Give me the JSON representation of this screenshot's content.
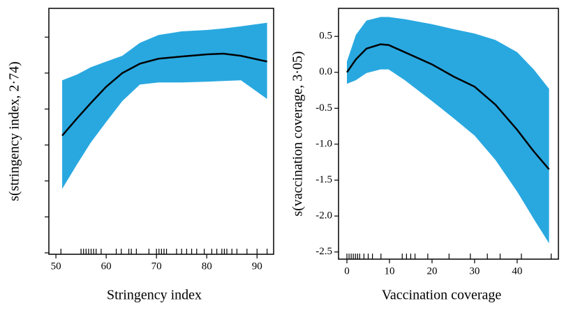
{
  "chart_data": [
    {
      "type": "line",
      "x_label": "Stringency index",
      "y_label": "s(stringency index, 2·74)",
      "x": [
        51.25,
        54.2,
        56.9,
        60,
        63.2,
        66.7,
        70.4,
        75,
        80.1,
        83.3,
        86.8,
        92
      ],
      "values": [
        -0.87,
        -0.63,
        -0.42,
        -0.19,
        0,
        0.13,
        0.2,
        0.23,
        0.26,
        0.27,
        0.24,
        0.16
      ],
      "band_upper": [
        -0.1,
        -0.02,
        0.08,
        0.16,
        0.24,
        0.42,
        0.53,
        0.58,
        0.6,
        0.62,
        0.65,
        0.7
      ],
      "band_lower": [
        -1.61,
        -1.27,
        -0.97,
        -0.68,
        -0.39,
        -0.16,
        -0.13,
        -0.13,
        -0.12,
        -0.11,
        -0.1,
        -0.36
      ],
      "rug": [
        51,
        55,
        55.5,
        56,
        56.5,
        57,
        57.5,
        58,
        59,
        62,
        63,
        64.5,
        65,
        66,
        68.5,
        70,
        70.5,
        71,
        71.5,
        72,
        74,
        75,
        76,
        77,
        78,
        79.5,
        81,
        82,
        83,
        83.5,
        84,
        85,
        86,
        88,
        90,
        92
      ],
      "color": "#000000",
      "band_color": "#29a8e0",
      "xlim": [
        48.6,
        93.3
      ],
      "xticks": [
        50,
        60,
        70,
        80,
        90
      ],
      "ylim": [
        -2.52,
        0.9
      ],
      "yticks": [
        0.5,
        0,
        -0.5,
        -1,
        -1.5,
        -2,
        -2.5
      ],
      "ytick_labels": false
    },
    {
      "type": "line",
      "x_label": "Vaccination coverage",
      "y_label": "s(vaccination coverage, 3·05)",
      "x": [
        0,
        2.1,
        4.6,
        7.9,
        9.8,
        13.6,
        20,
        25.1,
        30,
        34.9,
        40,
        43.9,
        47.5
      ],
      "values": [
        0,
        0.18,
        0.33,
        0.39,
        0.38,
        0.28,
        0.11,
        -0.06,
        -0.2,
        -0.45,
        -0.8,
        -1.1,
        -1.35
      ],
      "band_upper": [
        0.15,
        0.52,
        0.72,
        0.77,
        0.77,
        0.74,
        0.67,
        0.6,
        0.54,
        0.45,
        0.28,
        0.04,
        -0.23
      ],
      "band_lower": [
        -0.16,
        -0.11,
        -0.01,
        0.04,
        0.04,
        -0.11,
        -0.4,
        -0.64,
        -0.88,
        -1.22,
        -1.66,
        -2.04,
        -2.38
      ],
      "rug": [
        0,
        0.5,
        1,
        1.5,
        2,
        2.5,
        3,
        4,
        5,
        6,
        8,
        13,
        14,
        15,
        16,
        19,
        24,
        29,
        33,
        36,
        41,
        48
      ],
      "color": "#000000",
      "band_color": "#29a8e0",
      "xlim": [
        -1.97,
        49.7
      ],
      "xticks": [
        0,
        10,
        20,
        30,
        40
      ],
      "ylim": [
        -2.6,
        0.89
      ],
      "yticks": [
        0.5,
        {
          "value": 0,
          "label": "0.0"
        },
        -0.5,
        {
          "value": -1,
          "label": "-1.0"
        },
        -1.5,
        {
          "value": -2,
          "label": "-2.0"
        },
        -2.5
      ],
      "ytick_labels": true
    }
  ]
}
